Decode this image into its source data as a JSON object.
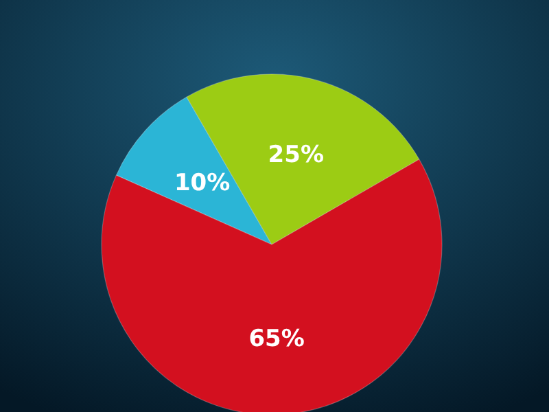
{
  "chart_data": {
    "type": "pie",
    "categories": [
      null,
      null,
      null
    ],
    "values": [
      10,
      25,
      65
    ],
    "colors": [
      "#2bb5d6",
      "#9ccc14",
      "#d3101f"
    ],
    "value_labels": [
      "10%",
      "25%",
      "65%"
    ]
  }
}
